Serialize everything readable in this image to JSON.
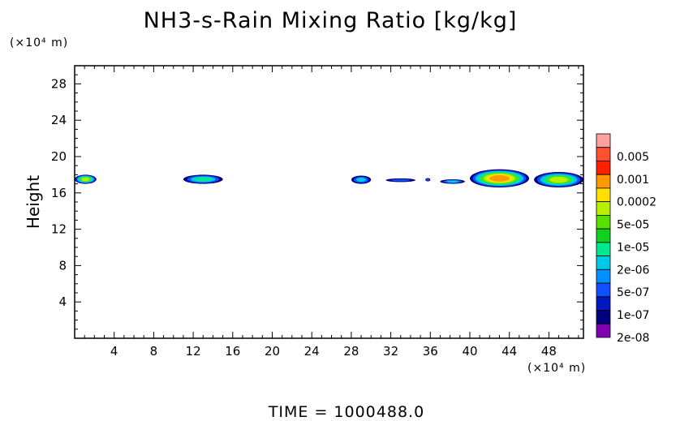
{
  "chart_data": {
    "type": "heatmap",
    "title": "NH3-s-Rain Mixing Ratio [kg/kg]",
    "xlabel": "",
    "ylabel": "Height",
    "x_unit": "(×10⁴ m)",
    "y_unit": "(×10⁴ m)",
    "xlim": [
      0,
      51.5
    ],
    "ylim": [
      0,
      30
    ],
    "x_ticks": [
      4,
      8,
      12,
      16,
      20,
      24,
      28,
      32,
      36,
      40,
      44,
      48
    ],
    "y_ticks": [
      4,
      8,
      12,
      16,
      20,
      24,
      28
    ],
    "colorbar": {
      "labels": [
        "0.005",
        "0.001",
        "0.0002",
        "5e-05",
        "1e-05",
        "2e-06",
        "5e-07",
        "1e-07",
        "2e-08"
      ],
      "colors": [
        "#ffa0a0",
        "#ff5030",
        "#ff2000",
        "#ff9900",
        "#ffe000",
        "#b8f000",
        "#58e000",
        "#10d020",
        "#00e890",
        "#00c8e8",
        "#0090ff",
        "#1050ff",
        "#0018c0",
        "#000080",
        "#8000b0"
      ]
    },
    "features": [
      {
        "x": [
          0,
          2.2
        ],
        "y": [
          17.0,
          18.0
        ],
        "max_class": "5e-05"
      },
      {
        "x": [
          11,
          15
        ],
        "y": [
          17.0,
          18.0
        ],
        "max_class": "2e-06"
      },
      {
        "x": [
          28,
          30
        ],
        "y": [
          17.0,
          17.9
        ],
        "max_class": "5e-07"
      },
      {
        "x": [
          31.5,
          34.5
        ],
        "y": [
          17.2,
          17.6
        ],
        "max_class": "1e-07"
      },
      {
        "x": [
          35.5,
          36
        ],
        "y": [
          17.3,
          17.6
        ],
        "max_class": "1e-07"
      },
      {
        "x": [
          37,
          39.5
        ],
        "y": [
          17.0,
          17.5
        ],
        "max_class": "5e-07"
      },
      {
        "x": [
          40,
          46
        ],
        "y": [
          16.6,
          18.6
        ],
        "max_class": "0.0002"
      },
      {
        "x": [
          46.5,
          51.5
        ],
        "y": [
          16.6,
          18.3
        ],
        "max_class": "5e-05"
      }
    ]
  },
  "footer": {
    "time_text": "TIME = 1000488.0"
  }
}
